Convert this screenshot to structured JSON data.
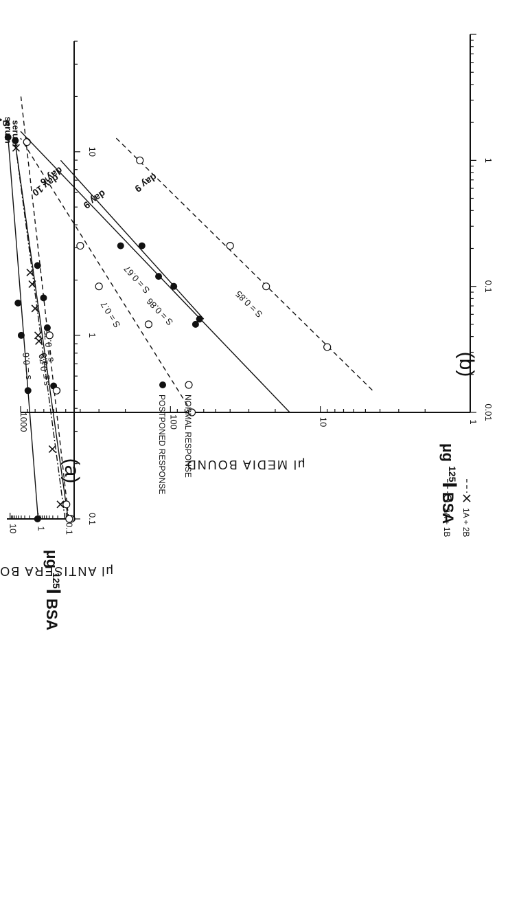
{
  "chart_data": [
    {
      "type": "scatter",
      "panel_label": "(a)",
      "xlabel_unit": "μg",
      "xlabel_sup": "125",
      "xlabel_el": "I",
      "xlabel_rest": "BSA",
      "ylabel": "μl ANTISERA BOUND",
      "x_scale": "log",
      "y_scale": "log",
      "xlim": [
        0.1,
        40
      ],
      "ylim": [
        0.052,
        13
      ],
      "x_ticks": [
        0.1,
        1,
        10
      ],
      "x_tick_labels": [
        "0.1",
        "1",
        "10"
      ],
      "y_ticks": [
        0.1,
        1,
        10
      ],
      "y_tick_labels": [
        "0.1",
        "1",
        "10"
      ],
      "legend": [
        {
          "marker": "x",
          "line": "dashed",
          "label": "1A + 2B"
        },
        {
          "marker": "open-circle",
          "line": "dashed",
          "label": "2A + 1B"
        }
      ],
      "series": [
        {
          "name": "serum A",
          "marker": "filled-circle",
          "line": "solid",
          "x": [
            0.1,
            0.5,
            1,
            1.5,
            12
          ],
          "y": [
            1.05,
            2.3,
            4.0,
            5.2,
            11.8
          ],
          "fit": {
            "x": [
              0.1,
              12
            ],
            "y": [
              1.0,
              11.8
            ],
            "label": "s = 0.6"
          }
        },
        {
          "name": "serum B",
          "marker": "filled-circle",
          "line": "solid",
          "x": [
            0.1,
            0.5,
            0.53,
            1.1,
            1.6,
            2.4,
            11.5
          ],
          "y": [
            0.062,
            0.21,
            0.28,
            0.47,
            0.64,
            1.05,
            6.5
          ],
          "fit": {
            "x": [
              0.1,
              12
            ],
            "y": [
              0.085,
              7.0
            ],
            "label": "s = 1.0"
          }
        },
        {
          "name": "1A + 2B",
          "marker": "x",
          "line": "dashed",
          "x": [
            0.12,
            0.24,
            0.93,
            1.0,
            1.4,
            1.9,
            2.2,
            10.5
          ],
          "y": [
            0.16,
            0.31,
            0.94,
            1.0,
            1.28,
            1.62,
            1.92,
            6.1
          ],
          "fit": {
            "x": [
              0.1,
              11
            ],
            "y": [
              0.11,
              6.5
            ],
            "label": "s = 0.79"
          }
        },
        {
          "name": "2A + 1B",
          "marker": "open-circle",
          "line": "dashed",
          "x": [
            0.1,
            0.1,
            0.12,
            0.5,
            1.0,
            11.3
          ],
          "y": [
            0.068,
            0.078,
            0.098,
            0.22,
            0.39,
            2.5
          ],
          "fit": {
            "x": [
              0.1,
              20
            ],
            "y": [
              0.081,
              4.1
            ],
            "label": "s = 0.75"
          }
        }
      ],
      "line_labels": [
        {
          "text_top": "serum",
          "text_bottom": "A",
          "at": [
            12,
            11.8
          ]
        },
        {
          "text_top": "serum",
          "text_bottom": "B",
          "at": [
            11.5,
            6.5
          ]
        }
      ]
    },
    {
      "type": "scatter",
      "panel_label": "(b)",
      "xlabel_unit": "μg",
      "xlabel_sup": "125",
      "xlabel_el": "I",
      "xlabel_rest": "BSA",
      "ylabel": "μl MEDIA BOUND",
      "x_scale": "log",
      "y_scale": "log",
      "xlim": [
        0.01,
        10
      ],
      "ylim": [
        1,
        1000
      ],
      "x_ticks": [
        0.01,
        0.1,
        1
      ],
      "x_tick_labels": [
        "0.01",
        "0.1",
        "1"
      ],
      "y_ticks": [
        1,
        10,
        100,
        1000
      ],
      "y_tick_labels": [
        "1",
        "10",
        "100",
        "1000"
      ],
      "legend": [
        {
          "marker": "open-circle",
          "label": "NORMAL  RESPONSE"
        },
        {
          "marker": "filled-circle",
          "label": "POSTPONED  RESPONSE"
        }
      ],
      "series": [
        {
          "name": "day 6",
          "marker": "open-circle",
          "line": "dashed",
          "x": [
            0.01,
            0.05,
            0.1,
            0.21
          ],
          "y": [
            72,
            140,
            300,
            400
          ],
          "fit": {
            "x": [
              0.01,
              1.5
            ],
            "y": [
              72,
              1000
            ],
            "label": "S = 0.7"
          }
        },
        {
          "name": "day 10",
          "marker": "filled-circle",
          "line": "solid",
          "x": [
            0.05,
            0.12,
            0.21
          ],
          "y": [
            68,
            120,
            215
          ],
          "fit": {
            "x": [
              0.01,
              1.7
            ],
            "y": [
              16,
              1000
            ],
            "label": "S = 0.86"
          }
        },
        {
          "name": "day 9",
          "marker": "filled-circle",
          "line": "solid",
          "x": [
            0.055,
            0.1,
            0.21
          ],
          "y": [
            64,
            95,
            155
          ],
          "fit": {
            "x": [
              0.055,
              1.0
            ],
            "y": [
              60,
              540
            ],
            "label": "S = 0.67"
          }
        },
        {
          "name": "day 9",
          "marker": "open-circle",
          "line": "dashed",
          "x": [
            0.033,
            0.1,
            0.21,
            1.0
          ],
          "y": [
            9,
            23,
            40,
            160
          ],
          "fit": {
            "x": [
              0.015,
              1.5
            ],
            "y": [
              4.5,
              230
            ],
            "label": "S = 0.85"
          }
        }
      ],
      "line_labels": [
        {
          "text": "day 6",
          "at": [
            1.3,
            640
          ]
        },
        {
          "text": "day 10",
          "at": [
            1.1,
            700
          ]
        },
        {
          "text": "day 9",
          "at": [
            0.85,
            330
          ]
        },
        {
          "text": "day 9",
          "at": [
            1.15,
            150
          ]
        }
      ]
    }
  ]
}
